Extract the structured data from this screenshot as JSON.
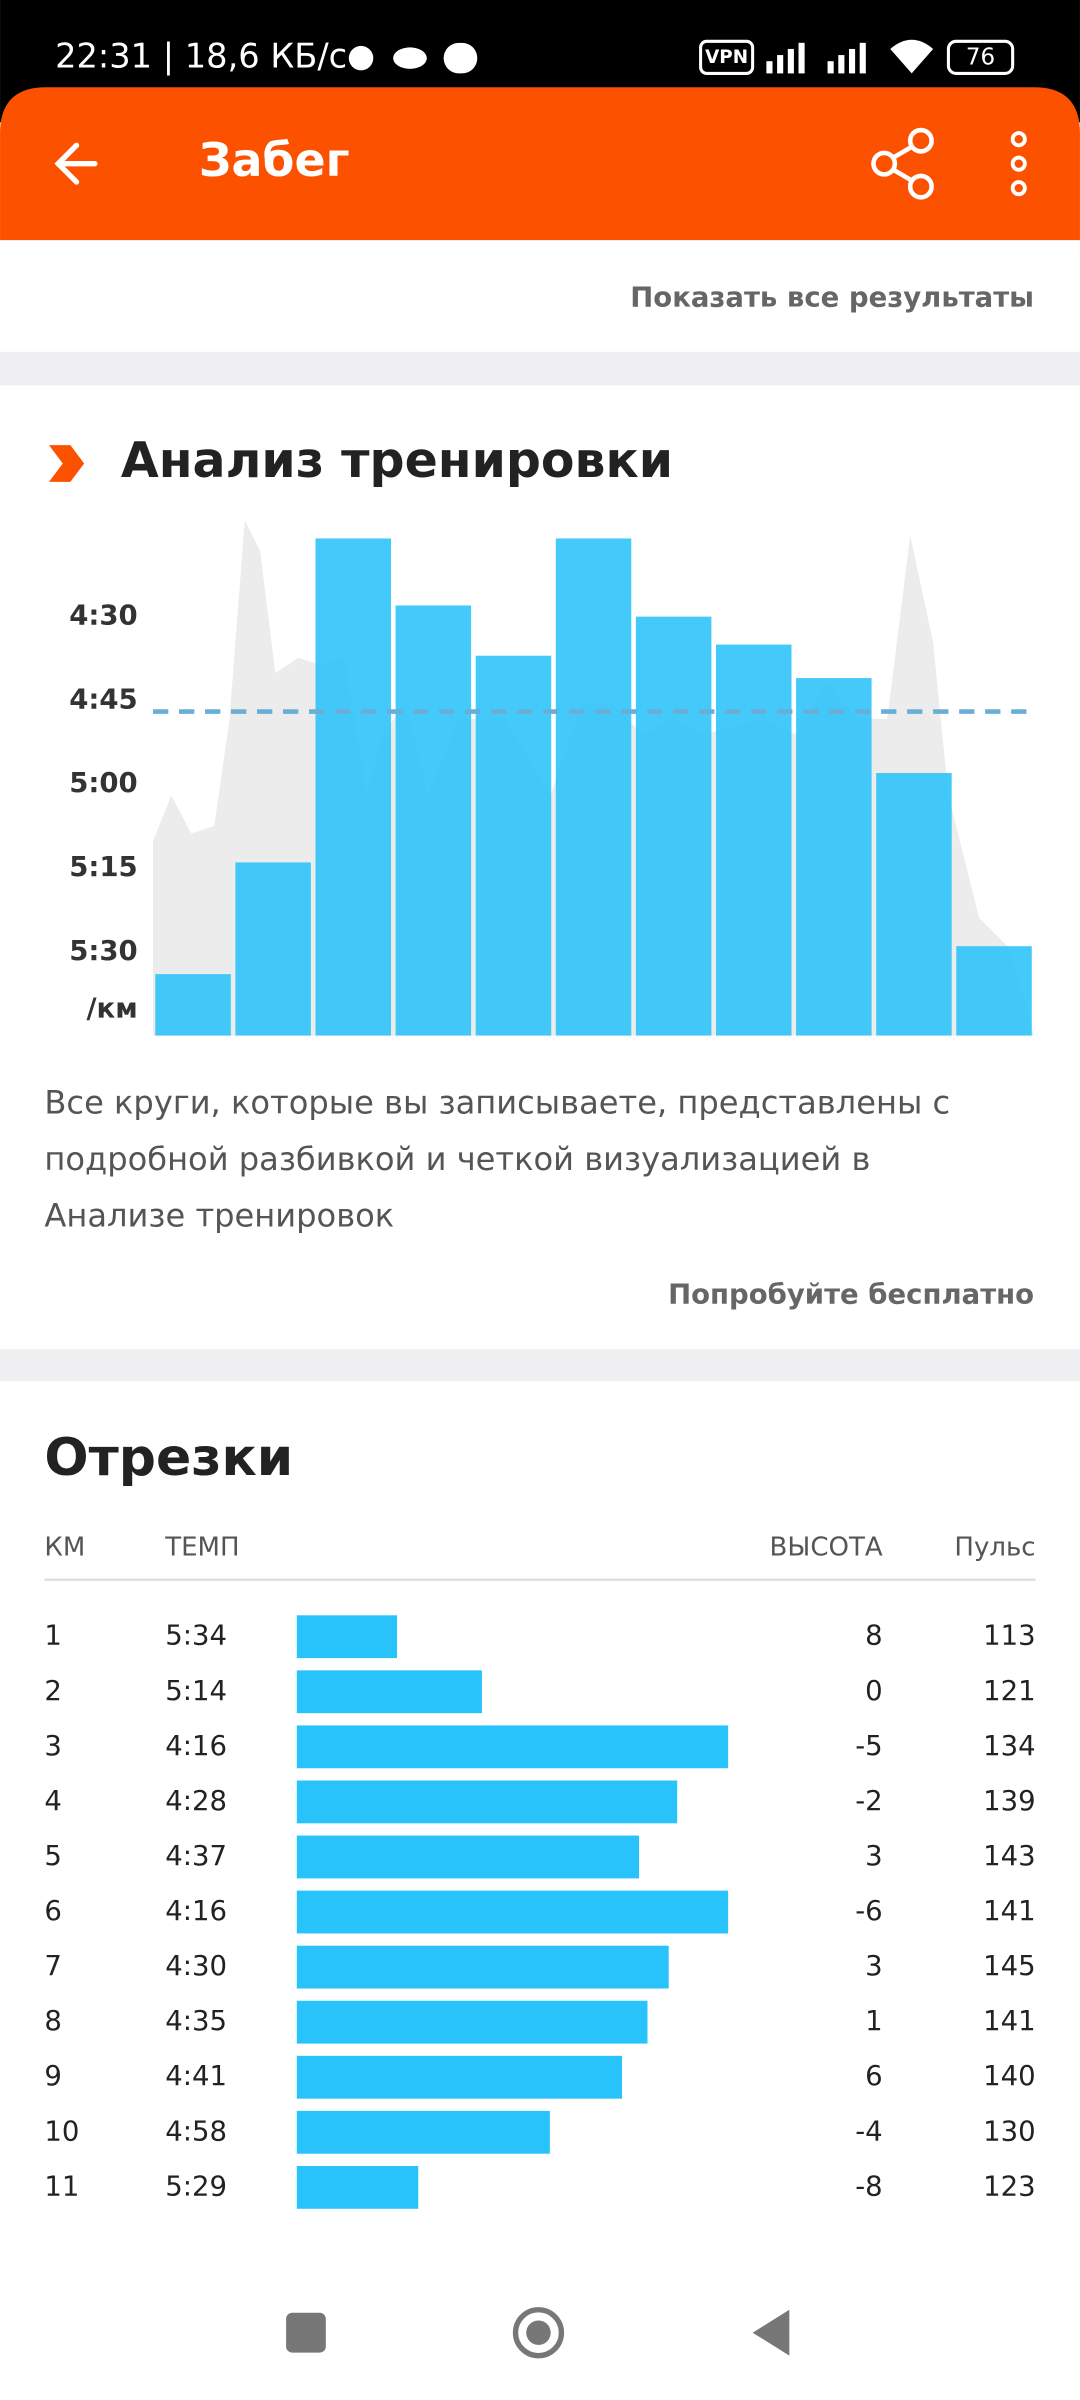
{
  "status": {
    "time": "22:31 | 18,6 КБ/с",
    "vpn": "VPN",
    "battery": "76"
  },
  "header": {
    "title": "Забег"
  },
  "results_link": "Показать все результаты",
  "analysis": {
    "title": "Анализ тренировки",
    "description_lines": [
      "Все круги, которые вы записываете, представлены с",
      "подробной разбивкой и четкой визуализацией в",
      "Анализе тренировок"
    ],
    "cta": "Попробуйте бесплатно"
  },
  "chart_data": {
    "type": "bar",
    "y_unit": "/км",
    "color": "#29c3fb",
    "inverted": true,
    "values": [
      334,
      314,
      256,
      268,
      277,
      256,
      270,
      275,
      281,
      298,
      329
    ],
    "value_labels": [
      "5:34",
      "5:14",
      "4:16",
      "4:28",
      "4:37",
      "4:16",
      "4:30",
      "4:35",
      "4:41",
      "4:58",
      "5:29"
    ],
    "ylim": [
      256,
      345
    ],
    "yticks": [
      {
        "value": 270,
        "label": "4:30"
      },
      {
        "value": 285,
        "label": "4:45"
      },
      {
        "value": 300,
        "label": "5:00"
      },
      {
        "value": 315,
        "label": "5:15"
      },
      {
        "value": 330,
        "label": "5:30"
      }
    ],
    "average": 287
  },
  "splits": {
    "title": "Отрезки",
    "headers": {
      "km": "КМ",
      "pace": "ТЕМП",
      "elevation": "ВЫСОТА",
      "hr": "Пульс"
    },
    "rows": [
      {
        "km": 1,
        "elevation": 8,
        "hr": 113
      },
      {
        "km": 2,
        "elevation": 0,
        "hr": 121
      },
      {
        "km": 3,
        "elevation": -5,
        "hr": 134
      },
      {
        "km": 4,
        "elevation": -2,
        "hr": 139
      },
      {
        "km": 5,
        "elevation": 3,
        "hr": 143
      },
      {
        "km": 6,
        "elevation": -6,
        "hr": 141
      },
      {
        "km": 7,
        "elevation": 3,
        "hr": 145
      },
      {
        "km": 8,
        "elevation": 1,
        "hr": 141
      },
      {
        "km": 9,
        "elevation": 6,
        "hr": 140
      },
      {
        "km": 10,
        "elevation": -4,
        "hr": 130
      },
      {
        "km": 11,
        "elevation": -8,
        "hr": 123
      }
    ]
  }
}
